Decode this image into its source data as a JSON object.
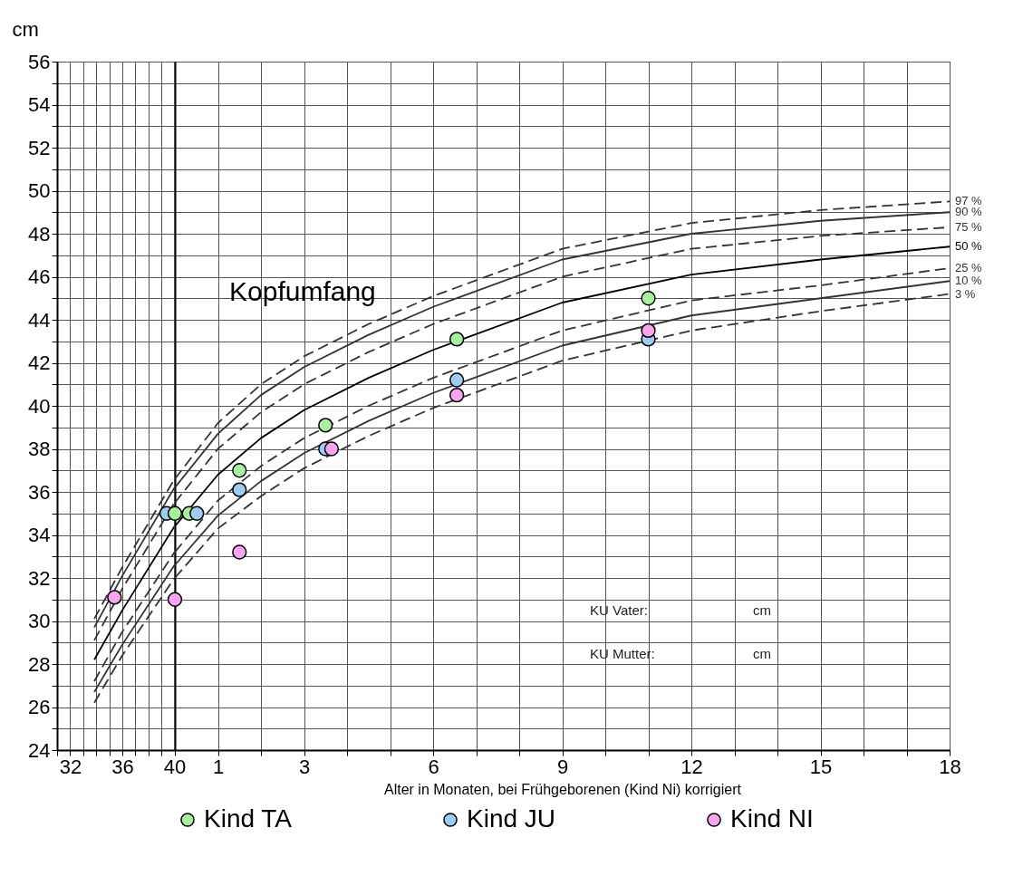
{
  "chart_data": [
    {
      "type": "line",
      "ylabel": "cm",
      "xlim": [
        31,
        40
      ],
      "ylim": [
        24,
        56
      ],
      "xticks": [
        {
          "value": 31,
          "label": null
        },
        32,
        {
          "value": 33,
          "label": null
        },
        {
          "value": 34,
          "label": null
        },
        {
          "value": 35,
          "label": null
        },
        36,
        {
          "value": 37,
          "label": null
        },
        {
          "value": 38,
          "label": null
        },
        {
          "value": 39,
          "label": null
        },
        40
      ],
      "yticks": [
        24,
        {
          "value": 25,
          "label": null
        },
        26,
        {
          "value": 27,
          "label": null
        },
        28,
        {
          "value": 29,
          "label": null
        },
        30,
        {
          "value": 31,
          "label": null
        },
        32,
        {
          "value": 33,
          "label": null
        },
        34,
        {
          "value": 35,
          "label": null
        },
        36,
        {
          "value": 37,
          "label": null
        },
        38,
        {
          "value": 39,
          "label": null
        },
        40,
        {
          "value": 41,
          "label": null
        },
        42,
        {
          "value": 43,
          "label": null
        },
        44,
        {
          "value": 45,
          "label": null
        },
        46,
        {
          "value": 47,
          "label": null
        },
        48,
        {
          "value": 49,
          "label": null
        },
        50,
        {
          "value": 51,
          "label": null
        },
        52,
        {
          "value": 53,
          "label": null
        },
        54,
        {
          "value": 55,
          "label": null
        },
        56
      ],
      "grid": true,
      "series": [
        {
          "type": "line",
          "color": "#333333",
          "line_style": "dashed",
          "x": [
            33.85,
            36,
            40
          ],
          "values": [
            30.1,
            32.5,
            36.6
          ]
        },
        {
          "type": "line",
          "color": "#333333",
          "line_style": "solid",
          "x": [
            33.85,
            36,
            40
          ],
          "values": [
            29.7,
            32.1,
            36.2
          ]
        },
        {
          "type": "line",
          "color": "#333333",
          "line_style": "dashed",
          "x": [
            33.85,
            36,
            40
          ],
          "values": [
            29.1,
            31.5,
            35.5
          ]
        },
        {
          "type": "line",
          "color": "#000000",
          "line_style": "solid",
          "x": [
            33.85,
            36,
            40
          ],
          "values": [
            28.2,
            30.5,
            34.4
          ]
        },
        {
          "type": "line",
          "color": "#333333",
          "line_style": "dashed",
          "x": [
            33.85,
            36,
            40
          ],
          "values": [
            27.2,
            29.5,
            33.2
          ]
        },
        {
          "type": "line",
          "color": "#333333",
          "line_style": "solid",
          "x": [
            33.85,
            36,
            40
          ],
          "values": [
            26.7,
            28.9,
            32.6
          ]
        },
        {
          "type": "line",
          "color": "#333333",
          "line_style": "dashed",
          "x": [
            33.85,
            36,
            40
          ],
          "values": [
            26.2,
            28.4,
            32.0
          ]
        },
        {
          "type": "scatter",
          "color": "#a0ccf4",
          "marker": "circle",
          "x": [
            39.4
          ],
          "values": [
            35
          ]
        },
        {
          "type": "scatter",
          "color": "#f8a4f0",
          "marker": "circle",
          "x": [
            35.4
          ],
          "values": [
            31.1
          ]
        }
      ]
    },
    {
      "type": "line",
      "title": "Kopfumfang",
      "xlabel": "Alter in Monaten, bei Frühgeborenen (Kind Ni) korrigiert",
      "xlim": [
        0,
        18
      ],
      "ylim": [
        24,
        56
      ],
      "xticks": [
        1,
        {
          "value": 2,
          "label": null
        },
        3,
        {
          "value": 4,
          "label": null
        },
        {
          "value": 5,
          "label": null
        },
        6,
        {
          "value": 7,
          "label": null
        },
        {
          "value": 8,
          "label": null
        },
        9,
        {
          "value": 10,
          "label": null
        },
        {
          "value": 11,
          "label": null
        },
        12,
        {
          "value": 13,
          "label": null
        },
        {
          "value": 14,
          "label": null
        },
        15,
        {
          "value": 16,
          "label": null
        },
        {
          "value": 17,
          "label": null
        },
        18
      ],
      "yticks": [
        24,
        {
          "value": 25,
          "label": null
        },
        26,
        {
          "value": 27,
          "label": null
        },
        28,
        {
          "value": 29,
          "label": null
        },
        30,
        {
          "value": 31,
          "label": null
        },
        32,
        {
          "value": 33,
          "label": null
        },
        34,
        {
          "value": 35,
          "label": null
        },
        36,
        {
          "value": 37,
          "label": null
        },
        38,
        {
          "value": 39,
          "label": null
        },
        40,
        {
          "value": 41,
          "label": null
        },
        42,
        {
          "value": 43,
          "label": null
        },
        44,
        {
          "value": 45,
          "label": null
        },
        46,
        {
          "value": 47,
          "label": null
        },
        48,
        {
          "value": 49,
          "label": null
        },
        50,
        {
          "value": 51,
          "label": null
        },
        52,
        {
          "value": 53,
          "label": null
        },
        54,
        {
          "value": 55,
          "label": null
        },
        56
      ],
      "tick_labels": "x",
      "grid": true,
      "legend": "bottom",
      "annotations": [
        "KU Vater:",
        "cm",
        "KU Mutter:",
        "cm"
      ],
      "series": [
        {
          "type": "line",
          "name": "97 %",
          "color": "#333333",
          "line_style": "dashed",
          "x": [
            0,
            1,
            2,
            3,
            4.5,
            6,
            9,
            12,
            15,
            18
          ],
          "values": [
            36.6,
            39.2,
            41.0,
            42.3,
            43.8,
            45.1,
            47.3,
            48.5,
            49.1,
            49.5
          ]
        },
        {
          "type": "line",
          "name": "90 %",
          "color": "#333333",
          "line_style": "solid",
          "x": [
            0,
            1,
            2,
            3,
            4.5,
            6,
            9,
            12,
            15,
            18
          ],
          "values": [
            36.2,
            38.7,
            40.5,
            41.8,
            43.3,
            44.6,
            46.8,
            48.0,
            48.6,
            49.0
          ]
        },
        {
          "type": "line",
          "name": "75 %",
          "color": "#333333",
          "line_style": "dashed",
          "x": [
            0,
            1,
            2,
            3,
            4.5,
            6,
            9,
            12,
            15,
            18
          ],
          "values": [
            35.5,
            38.0,
            39.7,
            41.0,
            42.5,
            43.8,
            46.0,
            47.3,
            47.9,
            48.3
          ]
        },
        {
          "type": "line",
          "name": "50 %",
          "color": "#000000",
          "line_style": "solid",
          "x": [
            0,
            1,
            2,
            3,
            4.5,
            6,
            9,
            12,
            15,
            18
          ],
          "values": [
            34.4,
            36.8,
            38.5,
            39.8,
            41.3,
            42.6,
            44.8,
            46.1,
            46.8,
            47.4
          ]
        },
        {
          "type": "line",
          "name": "25 %",
          "color": "#333333",
          "line_style": "dashed",
          "x": [
            0,
            1,
            2,
            3,
            4.5,
            6,
            9,
            12,
            15,
            18
          ],
          "values": [
            33.2,
            35.6,
            37.2,
            38.5,
            40.0,
            41.3,
            43.5,
            44.9,
            45.6,
            46.4
          ]
        },
        {
          "type": "line",
          "name": "10 %",
          "color": "#333333",
          "line_style": "solid",
          "x": [
            0,
            1,
            2,
            3,
            4.5,
            6,
            9,
            12,
            15,
            18
          ],
          "values": [
            32.6,
            34.9,
            36.5,
            37.8,
            39.3,
            40.6,
            42.8,
            44.2,
            45.0,
            45.8
          ]
        },
        {
          "type": "line",
          "name": "3 %",
          "color": "#333333",
          "line_style": "dashed",
          "x": [
            0,
            1,
            2,
            3,
            4.5,
            6,
            9,
            12,
            15,
            18
          ],
          "values": [
            32.0,
            34.3,
            35.8,
            37.1,
            38.6,
            39.9,
            42.1,
            43.5,
            44.4,
            45.2
          ]
        },
        {
          "type": "scatter",
          "name": "Kind TA",
          "color": "#a8f0a0",
          "marker": "circle",
          "x": [
            0,
            0.33,
            1.5,
            3.5,
            6.55,
            11
          ],
          "values": [
            35,
            35,
            37,
            39.1,
            43.1,
            45
          ]
        },
        {
          "type": "scatter",
          "name": "Kind JU",
          "color": "#a0ccf4",
          "marker": "circle",
          "x": [
            0.51,
            1.5,
            3.5,
            6.55,
            11
          ],
          "values": [
            35,
            36.1,
            38,
            41.2,
            43.1
          ]
        },
        {
          "type": "scatter",
          "name": "Kind NI",
          "color": "#f8a4f0",
          "marker": "circle",
          "x": [
            0,
            1.5,
            3.64,
            6.55,
            11
          ],
          "values": [
            31,
            33.2,
            38,
            40.5,
            43.5
          ]
        }
      ]
    }
  ]
}
